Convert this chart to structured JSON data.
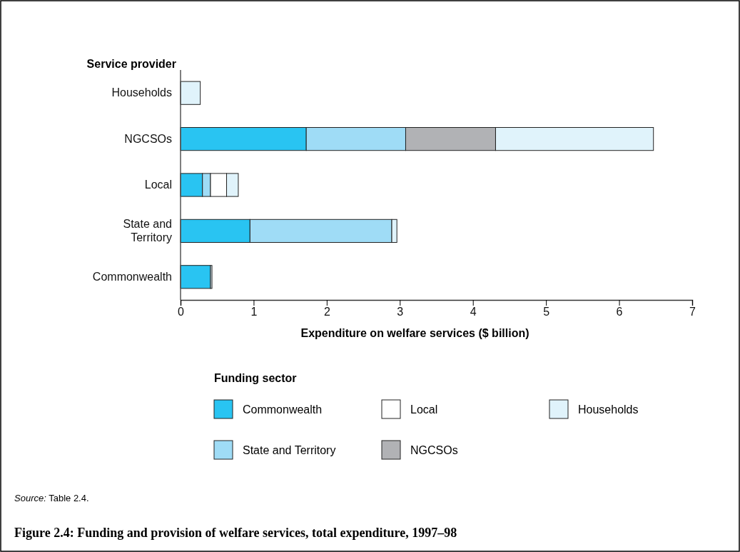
{
  "chart_data": {
    "type": "bar",
    "orientation": "horizontal",
    "stacked": true,
    "title": "Figure 2.4: Funding and provision of welfare services, total expenditure, 1997–98",
    "ylabel": "Service provider",
    "xlabel": "Expenditure on welfare services ($ billion)",
    "legend_title": "Funding sector",
    "annotations": [
      "Source: Table 2.4."
    ],
    "categories": [
      "Households",
      "NGCSOs",
      "Local",
      "State and Territory",
      "Commonwealth"
    ],
    "series": [
      {
        "name": "Commonwealth",
        "color": "#29c4f2",
        "values": [
          null,
          1.72,
          0.3,
          0.95,
          0.41
        ]
      },
      {
        "name": "State and Territory",
        "color": "#9fdcf6",
        "values": [
          null,
          1.36,
          0.11,
          1.94,
          null
        ]
      },
      {
        "name": "Local",
        "color": "#ffffff",
        "values": [
          null,
          null,
          0.22,
          null,
          null
        ]
      },
      {
        "name": "NGCSOs",
        "color": "#b1b2b5",
        "values": [
          null,
          1.23,
          null,
          null,
          null
        ]
      },
      {
        "name": "Households",
        "color": "#e0f3fb",
        "values": [
          0.27,
          2.16,
          0.16,
          0.07,
          0.02
        ]
      }
    ],
    "xlim": [
      0,
      7
    ],
    "xticks": [
      0,
      1,
      2,
      3,
      4,
      5,
      6,
      7
    ],
    "legend": "bottom"
  }
}
